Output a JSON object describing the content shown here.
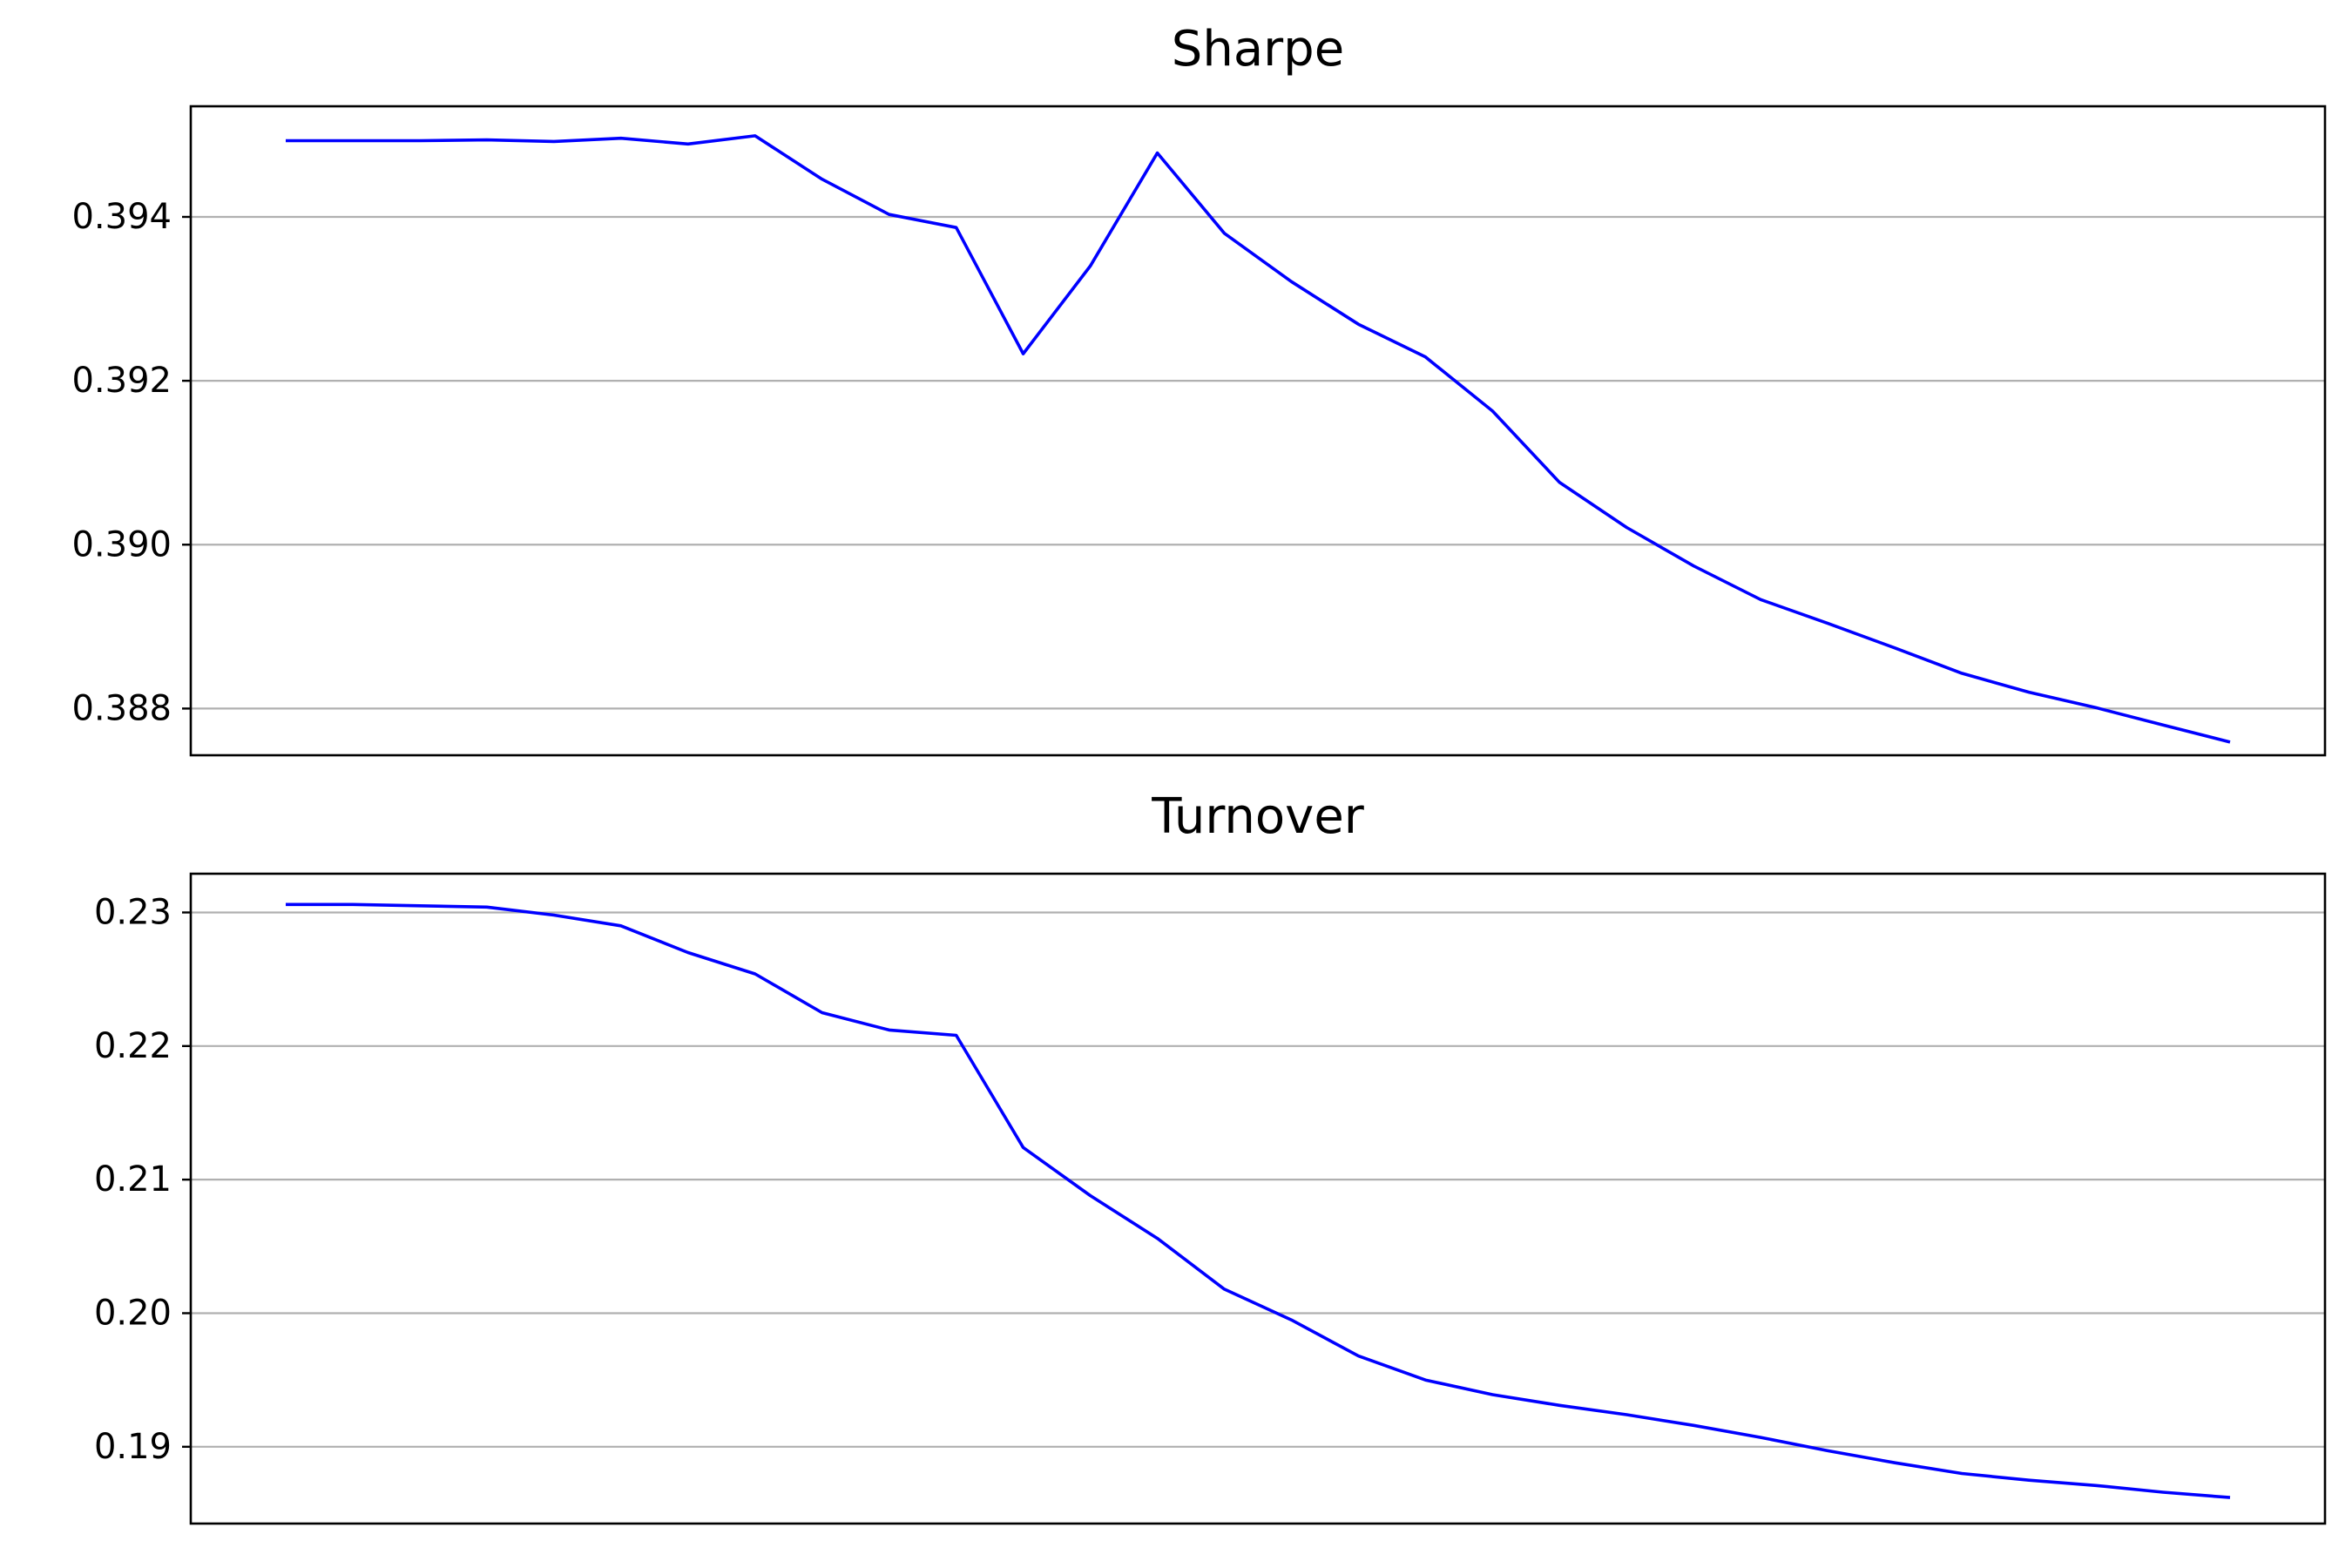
{
  "chart_data": [
    {
      "type": "line",
      "title": "Sharpe",
      "xlabel": "",
      "ylabel": "",
      "grid": "y",
      "legend": "none",
      "x_ticks_visible": false,
      "ylim": [
        0.38743,
        0.39535
      ],
      "yticks": [
        0.388,
        0.39,
        0.392,
        0.394
      ],
      "ytick_labels": [
        "0.388",
        "0.390",
        "0.392",
        "0.394"
      ],
      "series": [
        {
          "color": "#0000ff",
          "values": [
            0.39493,
            0.39493,
            0.39493,
            0.39494,
            0.39492,
            0.39496,
            0.39489,
            0.39499,
            0.39446,
            0.39403,
            0.39387,
            0.39233,
            0.3934,
            0.39478,
            0.3938,
            0.39321,
            0.39269,
            0.39229,
            0.39163,
            0.39076,
            0.39021,
            0.38974,
            0.38933,
            0.38904,
            0.38874,
            0.38843,
            0.3882,
            0.38801,
            0.3878,
            0.38759
          ]
        }
      ]
    },
    {
      "type": "line",
      "title": "Turnover",
      "xlabel": "",
      "ylabel": "",
      "grid": "y",
      "legend": "none",
      "x_ticks_visible": false,
      "ylim": [
        0.18425,
        0.2329
      ],
      "yticks": [
        0.19,
        0.2,
        0.21,
        0.22,
        0.23
      ],
      "ytick_labels": [
        "0.19",
        "0.20",
        "0.21",
        "0.22",
        "0.23"
      ],
      "series": [
        {
          "color": "#0000ff",
          "values": [
            0.2306,
            0.2306,
            0.2305,
            0.2304,
            0.2298,
            0.229,
            0.227,
            0.2254,
            0.2225,
            0.2212,
            0.2208,
            0.2124,
            0.2088,
            0.2056,
            0.2018,
            0.1995,
            0.1968,
            0.195,
            0.1939,
            0.1931,
            0.1924,
            0.1916,
            0.1907,
            0.1897,
            0.1888,
            0.188,
            0.1875,
            0.1871,
            0.1866,
            0.1862
          ]
        }
      ]
    }
  ]
}
